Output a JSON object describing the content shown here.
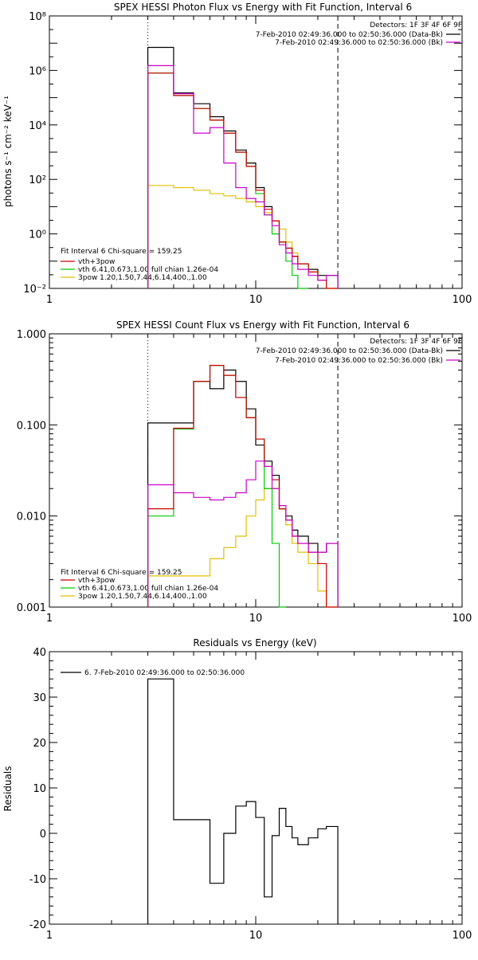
{
  "colors": {
    "black": "#000000",
    "magenta": "#cc00cc",
    "green": "#00cc00",
    "red": "#cc0000",
    "yellow": "#e0c000"
  },
  "chart_data": [
    {
      "type": "line",
      "title": "SPEX HESSI Photon Flux vs Energy with Fit Function, Interval 6",
      "xlabel": "",
      "ylabel": "photons s⁻¹ cm⁻² keV⁻¹",
      "xscale": "log",
      "yscale": "log",
      "xlim": [
        1,
        100
      ],
      "ylim": [
        0.01,
        100000000
      ],
      "x_ticks": [
        1,
        10,
        100
      ],
      "x_tick_labels": [
        "1",
        "10",
        "100"
      ],
      "y_ticks": [
        0.01,
        1,
        100,
        10000,
        1000000,
        100000000
      ],
      "y_tick_labels": [
        "10⁻²",
        "10⁰",
        "10²",
        "10⁴",
        "10⁶",
        "10⁸"
      ],
      "vlines": [
        {
          "x": 3.0,
          "style": "dotted"
        },
        {
          "x": 25.0,
          "style": "dashed"
        }
      ],
      "legend_topright": {
        "header": "Detectors: 1F 3F 4F 6F 9F",
        "entries": [
          {
            "label": "7-Feb-2010 02:49:36.000 to 02:50:36.000 (Data-Bk)",
            "color": "black"
          },
          {
            "label": "7-Feb-2010 02:49:36.000 to 02:50:36.000 (Bk)",
            "color": "magenta"
          }
        ]
      },
      "legend_bottomleft": {
        "header": "Fit Interval 6   Chi-square = 159.25",
        "entries": [
          {
            "label": "vth+3pow",
            "color": "red"
          },
          {
            "label": "vth 6.41,0.673,1.00  full chian 1.26e-04",
            "color": "green"
          },
          {
            "label": "3pow 1.20,1.50,7.44,6.14,400.,1.00",
            "color": "yellow"
          }
        ]
      },
      "bin_edges": [
        3,
        4,
        5,
        6,
        7,
        8,
        9,
        10,
        11,
        12,
        13,
        14,
        15,
        16,
        18,
        20,
        22,
        25
      ],
      "series": [
        {
          "color": "black",
          "values": [
            7000000,
            150000,
            60000,
            20000,
            6000,
            1200,
            400,
            50,
            10,
            3,
            0.5,
            0.3,
            0.15,
            0.08,
            0.05,
            0.03,
            0.03
          ]
        },
        {
          "color": "yellow",
          "values": [
            60,
            50,
            40,
            30,
            25,
            20,
            15,
            10,
            6,
            3,
            1.5,
            0.5,
            0.2,
            0.08,
            0.04,
            0.02,
            0.01
          ]
        },
        {
          "color": "green",
          "values": [
            800000,
            120000,
            40000,
            15000,
            5000,
            1000,
            300,
            30,
            5,
            1,
            0.5,
            0.1,
            0.03,
            0.01
          ]
        },
        {
          "color": "red",
          "values": [
            800000,
            120000,
            40000,
            15000,
            5000,
            1000,
            300,
            40,
            8,
            3,
            0.5,
            0.3,
            0.15,
            0.08,
            0.04,
            0.02,
            0.01
          ]
        },
        {
          "color": "magenta",
          "values": [
            1500000,
            140000,
            5000,
            8000,
            400,
            50,
            20,
            15,
            5,
            2,
            0.4,
            0.2,
            0.08,
            0.05,
            0.03,
            0.02,
            0.03
          ]
        }
      ]
    },
    {
      "type": "line",
      "title": "SPEX HESSI Count Flux vs Energy with Fit Function, Interval 6",
      "xlabel": "",
      "ylabel": "",
      "xscale": "log",
      "yscale": "log",
      "xlim": [
        1,
        100
      ],
      "ylim": [
        0.001,
        1.0
      ],
      "x_ticks": [
        1,
        10,
        100
      ],
      "x_tick_labels": [
        "1",
        "10",
        "100"
      ],
      "y_ticks": [
        0.001,
        0.01,
        0.1,
        1.0
      ],
      "y_tick_labels": [
        "0.001",
        "0.010",
        "0.100",
        "1.000"
      ],
      "vlines": [
        {
          "x": 3.0,
          "style": "dotted"
        },
        {
          "x": 25.0,
          "style": "dashed"
        }
      ],
      "legend_topright": {
        "header": "Detectors: 1F 3F 4F 6F 9F",
        "entries": [
          {
            "label": "7-Feb-2010 02:49:36.000 to 02:50:36.000 (Data-Bk)",
            "color": "black"
          },
          {
            "label": "7-Feb-2010 02:49:36.000 to 02:50:36.000 (Bk)",
            "color": "magenta"
          }
        ]
      },
      "legend_bottomleft": {
        "header": "Fit Interval 6   Chi-square = 159.25",
        "entries": [
          {
            "label": "vth+3pow",
            "color": "red"
          },
          {
            "label": "vth 6.41,0.673,1.00  full chian 1.26e-04",
            "color": "green"
          },
          {
            "label": "3pow 1.20,1.50,7.44,6.14,400.,1.00",
            "color": "yellow"
          }
        ]
      },
      "bin_edges": [
        3,
        4,
        5,
        6,
        7,
        8,
        9,
        10,
        11,
        12,
        13,
        14,
        15,
        16,
        18,
        20,
        22,
        25
      ],
      "series": [
        {
          "color": "black",
          "values": [
            0.105,
            0.105,
            0.3,
            0.25,
            0.4,
            0.3,
            0.15,
            0.06,
            0.04,
            0.028,
            0.012,
            0.01,
            0.007,
            0.006,
            0.005,
            0.004,
            0.005
          ]
        },
        {
          "color": "yellow",
          "values": [
            0.0022,
            0.0022,
            0.0022,
            0.0034,
            0.0045,
            0.006,
            0.01,
            0.015,
            0.02,
            0.02,
            0.012,
            0.008,
            0.005,
            0.004,
            0.003,
            0.0015,
            0.001
          ]
        },
        {
          "color": "green",
          "values": [
            0.01,
            0.09,
            0.3,
            0.45,
            0.35,
            0.2,
            0.12,
            0.07,
            0.02,
            0.005,
            0.001
          ]
        },
        {
          "color": "red",
          "values": [
            0.012,
            0.092,
            0.3,
            0.45,
            0.35,
            0.2,
            0.12,
            0.07,
            0.035,
            0.025,
            0.012,
            0.009,
            0.006,
            0.005,
            0.004,
            0.003,
            0.001
          ]
        },
        {
          "color": "magenta",
          "values": [
            0.022,
            0.018,
            0.016,
            0.015,
            0.016,
            0.018,
            0.025,
            0.04,
            0.035,
            0.02,
            0.013,
            0.009,
            0.006,
            0.005,
            0.004,
            0.004,
            0.005
          ]
        }
      ]
    },
    {
      "type": "line",
      "title": "Residuals vs Energy (keV)",
      "xlabel": "",
      "ylabel": "Residuals",
      "xscale": "log",
      "yscale": "linear",
      "xlim": [
        1,
        100
      ],
      "ylim": [
        -20,
        40
      ],
      "x_ticks": [
        1,
        10,
        100
      ],
      "x_tick_labels": [
        "1",
        "10",
        "100"
      ],
      "y_ticks": [
        -20,
        -10,
        0,
        10,
        20,
        30,
        40
      ],
      "y_tick_labels": [
        "-20",
        "-10",
        "0",
        "10",
        "20",
        "30",
        "40"
      ],
      "vlines": [],
      "legend_topleft": {
        "entries": [
          {
            "label": "6.  7-Feb-2010 02:49:36.000 to 02:50:36.000",
            "color": "black"
          }
        ]
      },
      "bin_edges": [
        3,
        4,
        5,
        6,
        7,
        8,
        9,
        10,
        11,
        12,
        13,
        14,
        15,
        16,
        18,
        20,
        22,
        25
      ],
      "series": [
        {
          "color": "black",
          "values": [
            34,
            3,
            3,
            -11,
            0,
            6,
            7,
            3.5,
            -14,
            -0.5,
            5.5,
            1.5,
            -1,
            -2.5,
            -1,
            1,
            1.5
          ]
        }
      ]
    }
  ]
}
